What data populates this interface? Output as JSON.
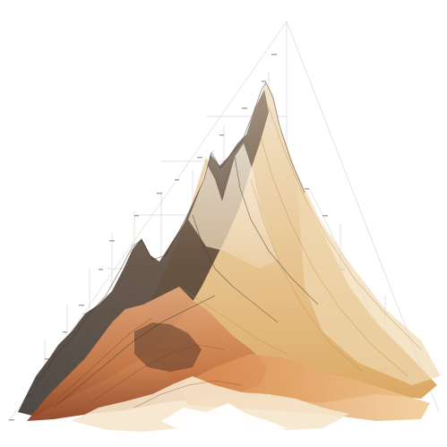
{
  "artwork": {
    "subject": "",
    "palette": {
      "background": "#ffffff",
      "cream": "#f3e6cf",
      "sand": "#e7c592",
      "ochre": "#d9a35a",
      "terracotta": "#c97a48",
      "rust": "#a9542c",
      "umber": "#6b4a36",
      "charcoal": "#3b3530",
      "grid_line": "#bdb7ad"
    },
    "annotation_marks": []
  }
}
